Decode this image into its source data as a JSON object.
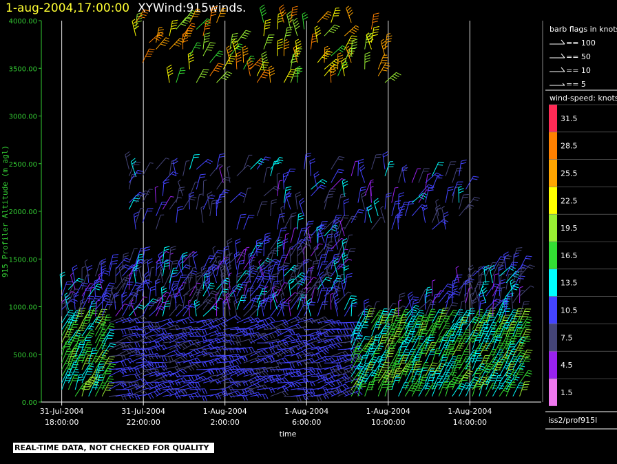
{
  "header": {
    "time": "1-aug-2004,17:00:00",
    "title": "XYWind:915winds."
  },
  "footer": {
    "text": "REAL-TIME DATA, NOT CHECKED FOR QUALITY"
  },
  "legend": {
    "barb_title": "barb flags in knots",
    "barbs": [
      "== 100",
      "== 50",
      "== 10",
      "== 5"
    ],
    "speed_title": "wind-speed: knots",
    "scale": [
      {
        "label": "31.5",
        "color": "#ff2a55"
      },
      {
        "label": "28.5",
        "color": "#ff8000"
      },
      {
        "label": "25.5",
        "color": "#ffa500"
      },
      {
        "label": "22.5",
        "color": "#ffff00"
      },
      {
        "label": "19.5",
        "color": "#99ee33"
      },
      {
        "label": "16.5",
        "color": "#33dd33"
      },
      {
        "label": "13.5",
        "color": "#00ffff"
      },
      {
        "label": "10.5",
        "color": "#4444ff"
      },
      {
        "label": "7.5",
        "color": "#444477"
      },
      {
        "label": "4.5",
        "color": "#9922ee"
      },
      {
        "label": "1.5",
        "color": "#ee77ee"
      }
    ],
    "source": "iss2/prof915l"
  },
  "chart_data": {
    "type": "wind-barb time-height",
    "xlabel": "time",
    "ylabel": "915 Profiler Altitude (m agl)",
    "ylim": [
      0,
      4000
    ],
    "yticks": [
      "0.00",
      "500.00",
      "1000.00",
      "1500.00",
      "2000.00",
      "2500.00",
      "3000.00",
      "3500.00",
      "4000.00"
    ],
    "xticks": [
      {
        "date": "31-Jul-2004",
        "time": "18:00:00"
      },
      {
        "date": "31-Jul-2004",
        "time": "22:00:00"
      },
      {
        "date": "1-Aug-2004",
        "time": "2:00:00"
      },
      {
        "date": "1-Aug-2004",
        "time": "6:00:00"
      },
      {
        "date": "1-Aug-2004",
        "time": "10:00:00"
      },
      {
        "date": "1-Aug-2004",
        "time": "14:00:00"
      }
    ],
    "xlim_hours": [
      -1,
      23.5
    ],
    "vertical_gridlines": true,
    "colorbar": "wind-speed knots"
  }
}
